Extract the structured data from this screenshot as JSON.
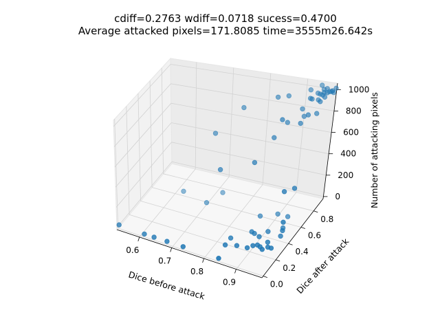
{
  "title": {
    "line1": "cdiff=0.2763 wdiff=0.0718 sucess=0.4700",
    "line2": "Average attacked pixels=171.8085 time=3555m26.642s"
  },
  "chart_data": {
    "type": "scatter",
    "projection": "3d",
    "xlabel": "Dice before attack",
    "ylabel": "Dice after attack",
    "zlabel": "Number of attacking pixels",
    "xlim": [
      0.53,
      0.98
    ],
    "ylim": [
      -0.02,
      0.95
    ],
    "zlim": [
      -20,
      1060
    ],
    "xticks": [
      "0.6",
      "0.7",
      "0.8",
      "0.9"
    ],
    "yticks": [
      "0.0",
      "0.2",
      "0.4",
      "0.6",
      "0.8"
    ],
    "zticks": [
      "0",
      "200",
      "400",
      "600",
      "800",
      "1000"
    ],
    "grid": true,
    "marker_color": "#1f77b4",
    "pane_colors": {
      "x": "#f2f2f2",
      "y": "#ebebeb",
      "z": "#f7f7f7"
    },
    "points": [
      [
        0.53,
        0.02,
        0
      ],
      [
        0.61,
        0.01,
        0
      ],
      [
        0.64,
        0.01,
        0
      ],
      [
        0.68,
        0.01,
        0
      ],
      [
        0.73,
        0.01,
        0
      ],
      [
        0.84,
        0.01,
        0
      ],
      [
        0.83,
        0.17,
        0
      ],
      [
        0.83,
        0.26,
        0
      ],
      [
        0.86,
        0.2,
        0
      ],
      [
        0.89,
        0.21,
        0
      ],
      [
        0.9,
        0.25,
        0
      ],
      [
        0.91,
        0.27,
        0
      ],
      [
        0.92,
        0.26,
        0
      ],
      [
        0.93,
        0.24,
        0
      ],
      [
        0.94,
        0.28,
        0
      ],
      [
        0.95,
        0.28,
        0
      ],
      [
        0.93,
        0.33,
        0
      ],
      [
        0.91,
        0.44,
        0
      ],
      [
        0.95,
        0.43,
        0
      ],
      [
        0.94,
        0.52,
        0
      ],
      [
        0.88,
        0.38,
        0
      ],
      [
        0.86,
        0.58,
        0
      ],
      [
        0.9,
        0.65,
        0
      ],
      [
        0.93,
        0.65,
        0
      ],
      [
        0.62,
        0.63,
        0
      ],
      [
        0.7,
        0.57,
        0
      ],
      [
        0.72,
        0.73,
        0
      ],
      [
        0.87,
        0.39,
        0
      ],
      [
        0.9,
        0.35,
        10
      ],
      [
        0.96,
        0.4,
        80
      ],
      [
        0.97,
        0.35,
        200
      ],
      [
        0.97,
        0.5,
        400
      ],
      [
        0.95,
        0.45,
        390
      ],
      [
        0.76,
        0.45,
        450
      ],
      [
        0.85,
        0.5,
        550
      ],
      [
        0.72,
        0.58,
        680
      ],
      [
        0.9,
        0.7,
        820
      ],
      [
        0.88,
        0.62,
        720
      ],
      [
        0.78,
        0.68,
        900
      ],
      [
        0.9,
        0.62,
        900
      ],
      [
        0.86,
        0.75,
        1000
      ],
      [
        0.88,
        0.8,
        990
      ],
      [
        0.94,
        0.82,
        980
      ],
      [
        0.92,
        0.8,
        890
      ],
      [
        0.94,
        0.68,
        850
      ],
      [
        0.95,
        0.73,
        900
      ],
      [
        0.93,
        0.85,
        960
      ],
      [
        0.96,
        0.86,
        1000
      ],
      [
        0.97,
        0.84,
        1000
      ],
      [
        0.95,
        0.88,
        990
      ],
      [
        0.97,
        0.9,
        1010
      ],
      [
        0.96,
        0.92,
        1020
      ],
      [
        0.98,
        0.91,
        1000
      ],
      [
        0.97,
        0.93,
        990
      ],
      [
        0.98,
        0.94,
        1020
      ],
      [
        0.96,
        0.88,
        1010
      ],
      [
        0.95,
        0.93,
        1000
      ],
      [
        0.94,
        0.9,
        980
      ],
      [
        0.97,
        0.87,
        1020
      ],
      [
        0.98,
        0.89,
        1030
      ],
      [
        0.95,
        0.86,
        950
      ],
      [
        0.96,
        0.8,
        870
      ],
      [
        0.93,
        0.78,
        840
      ],
      [
        0.97,
        0.78,
        1000
      ],
      [
        0.94,
        0.95,
        1020
      ],
      [
        0.92,
        0.9,
        1000
      ]
    ]
  }
}
